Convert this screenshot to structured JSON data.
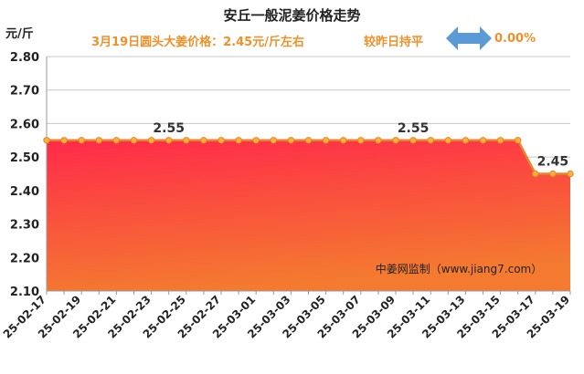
{
  "chart_data": {
    "type": "area",
    "title": "安丘一般泥姜价格走势",
    "ylabel": "元/斤",
    "ylim": [
      2.1,
      2.8
    ],
    "yticks": [
      2.1,
      2.2,
      2.3,
      2.4,
      2.5,
      2.6,
      2.7,
      2.8
    ],
    "x": [
      "25-02-17",
      "25-02-18",
      "25-02-19",
      "25-02-20",
      "25-02-21",
      "25-02-22",
      "25-02-23",
      "25-02-24",
      "25-02-25",
      "25-02-26",
      "25-02-27",
      "25-02-28",
      "25-03-01",
      "25-03-02",
      "25-03-03",
      "25-03-04",
      "25-03-05",
      "25-03-06",
      "25-03-07",
      "25-03-08",
      "25-03-09",
      "25-03-10",
      "25-03-11",
      "25-03-12",
      "25-03-13",
      "25-03-14",
      "25-03-15",
      "25-03-16",
      "25-03-17",
      "25-03-18",
      "25-03-19"
    ],
    "xtick_labels": [
      "25-02-17",
      "25-02-19",
      "25-02-21",
      "25-02-23",
      "25-02-25",
      "25-02-27",
      "25-03-01",
      "25-03-03",
      "25-03-05",
      "25-03-07",
      "25-03-09",
      "25-03-11",
      "25-03-13",
      "25-03-15",
      "25-03-17",
      "25-03-19"
    ],
    "values": [
      2.55,
      2.55,
      2.55,
      2.55,
      2.55,
      2.55,
      2.55,
      2.55,
      2.55,
      2.55,
      2.55,
      2.55,
      2.55,
      2.55,
      2.55,
      2.55,
      2.55,
      2.55,
      2.55,
      2.55,
      2.55,
      2.55,
      2.55,
      2.55,
      2.55,
      2.55,
      2.55,
      2.55,
      2.45,
      2.45,
      2.45
    ],
    "data_labels": [
      {
        "index": 7,
        "text": "2.55"
      },
      {
        "index": 21,
        "text": "2.55"
      },
      {
        "index": 29,
        "text": "2.45"
      }
    ],
    "grid": "horizontal",
    "line_color": "#e8852a",
    "marker_fill": "#f3b23a",
    "fill_top_color": "#ff2a4a",
    "fill_bottom_color": "#f47a30",
    "watermark": "中姜网监制（www.jiang7.com）"
  },
  "subtitle": {
    "price_text": "3月19日圆头大姜价格：2.45元/斤左右",
    "compare_text": "较昨日持平",
    "change_text": "0.00%",
    "arrow_icon": "double-arrow-icon",
    "arrow_color": "#5b9bd5"
  }
}
